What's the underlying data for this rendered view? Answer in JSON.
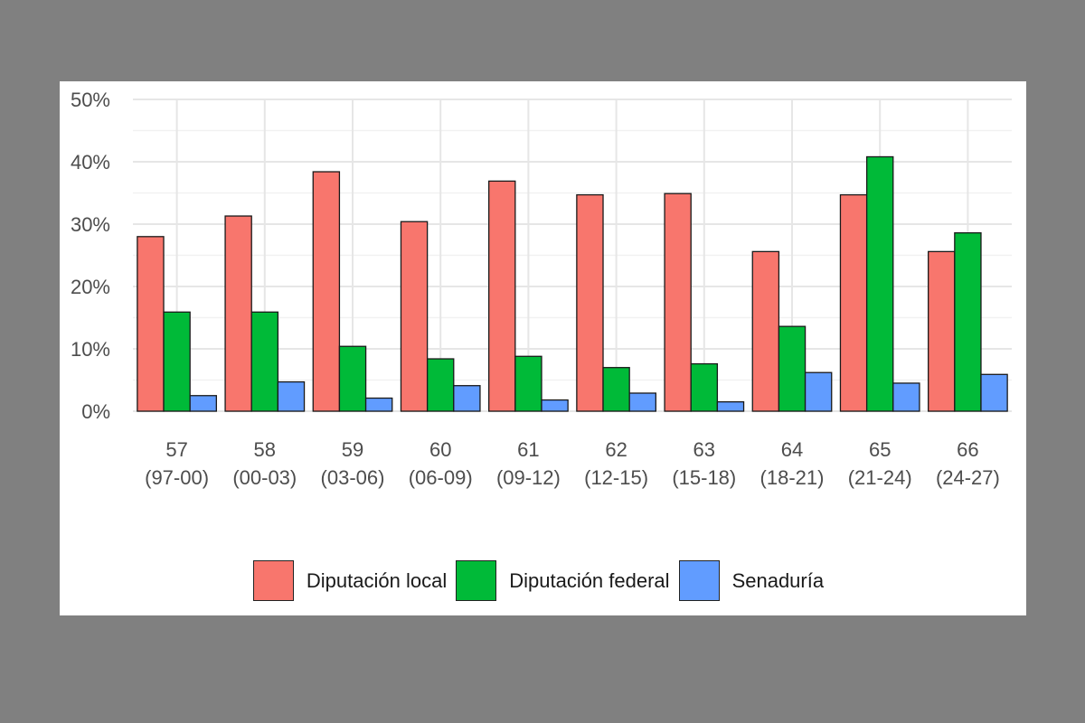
{
  "chart_data": {
    "type": "bar",
    "categories": [
      [
        "57",
        "(97-00)"
      ],
      [
        "58",
        "(00-03)"
      ],
      [
        "59",
        "(03-06)"
      ],
      [
        "60",
        "(06-09)"
      ],
      [
        "61",
        "(09-12)"
      ],
      [
        "62",
        "(12-15)"
      ],
      [
        "63",
        "(15-18)"
      ],
      [
        "64",
        "(18-21)"
      ],
      [
        "65",
        "(21-24)"
      ],
      [
        "66",
        "(24-27)"
      ]
    ],
    "series": [
      {
        "name": "Diputación local",
        "color": "#F8766D",
        "values": [
          28.0,
          31.3,
          38.4,
          30.4,
          36.9,
          34.7,
          34.9,
          25.6,
          34.7,
          25.6
        ]
      },
      {
        "name": "Diputación federal",
        "color": "#00BA38",
        "values": [
          15.9,
          15.9,
          10.4,
          8.4,
          8.8,
          7.0,
          7.6,
          13.6,
          40.8,
          28.6
        ]
      },
      {
        "name": "Senaduría",
        "color": "#619CFF",
        "values": [
          2.5,
          4.7,
          2.1,
          4.1,
          1.8,
          2.9,
          1.5,
          6.2,
          4.5,
          5.9
        ]
      }
    ],
    "ylim": [
      0,
      50
    ],
    "yticks": [
      "0%",
      "10%",
      "20%",
      "30%",
      "40%",
      "50%"
    ],
    "title": "",
    "xlabel": "",
    "ylabel": "",
    "grid": true,
    "legend_position": "bottom"
  }
}
